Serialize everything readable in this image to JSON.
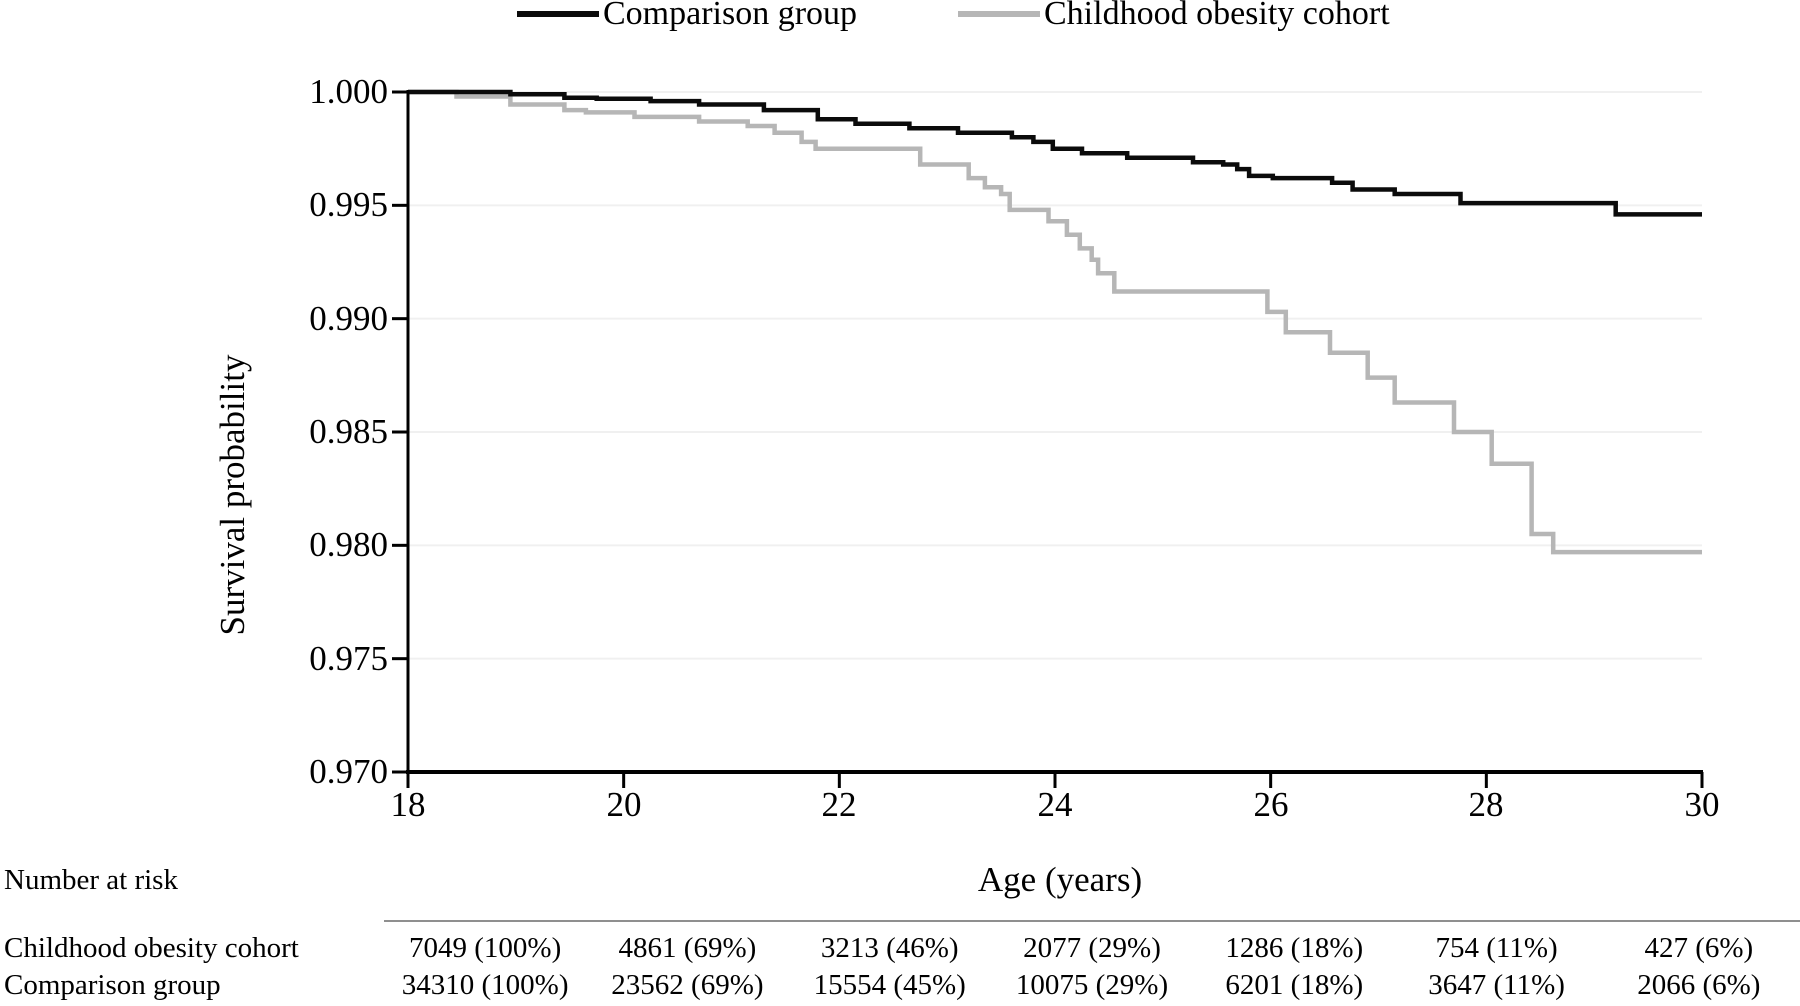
{
  "chart_data": {
    "type": "line",
    "subtype": "kaplan-meier-step",
    "title": "",
    "xlabel": "Age (years)",
    "ylabel": "Survival probability",
    "xlim": [
      18,
      30
    ],
    "ylim": [
      0.97,
      1.0
    ],
    "x_tick_labels": [
      "18",
      "20",
      "22",
      "24",
      "26",
      "28",
      "30"
    ],
    "y_tick_labels": [
      "1.000",
      "0.995",
      "0.990",
      "0.985",
      "0.980",
      "0.975",
      "0.970"
    ],
    "grid": "horizontal very light gridlines at each y tick",
    "legend_position": "top center",
    "series": [
      {
        "name": "Comparison group",
        "color": "#0b0b0b",
        "points": [
          [
            18.0,
            1.0
          ],
          [
            18.95,
            0.9999
          ],
          [
            19.45,
            0.99975
          ],
          [
            19.75,
            0.9997
          ],
          [
            20.25,
            0.9996
          ],
          [
            20.7,
            0.99945
          ],
          [
            21.3,
            0.9992
          ],
          [
            21.8,
            0.9988
          ],
          [
            22.15,
            0.9986
          ],
          [
            22.65,
            0.9984
          ],
          [
            23.1,
            0.9982
          ],
          [
            23.6,
            0.998
          ],
          [
            23.8,
            0.9978
          ],
          [
            23.98,
            0.9975
          ],
          [
            24.25,
            0.9973
          ],
          [
            24.67,
            0.9971
          ],
          [
            25.28,
            0.9969
          ],
          [
            25.56,
            0.9968
          ],
          [
            25.69,
            0.9966
          ],
          [
            25.8,
            0.9963
          ],
          [
            26.02,
            0.9962
          ],
          [
            26.57,
            0.996
          ],
          [
            26.76,
            0.9957
          ],
          [
            27.15,
            0.9955
          ],
          [
            27.76,
            0.9951
          ],
          [
            29.2,
            0.9946
          ],
          [
            30.0,
            0.9946
          ]
        ]
      },
      {
        "name": "Childhood obesity cohort",
        "color": "#b6b6b6",
        "points": [
          [
            18.0,
            1.0
          ],
          [
            18.45,
            0.9998
          ],
          [
            18.95,
            0.99945
          ],
          [
            19.45,
            0.9992
          ],
          [
            19.65,
            0.9991
          ],
          [
            20.1,
            0.9989
          ],
          [
            20.7,
            0.9987
          ],
          [
            21.15,
            0.9985
          ],
          [
            21.4,
            0.9982
          ],
          [
            21.65,
            0.9978
          ],
          [
            21.78,
            0.9975
          ],
          [
            22.75,
            0.9968
          ],
          [
            23.2,
            0.9962
          ],
          [
            23.35,
            0.9958
          ],
          [
            23.5,
            0.9955
          ],
          [
            23.58,
            0.9948
          ],
          [
            23.94,
            0.9943
          ],
          [
            24.11,
            0.9937
          ],
          [
            24.23,
            0.9931
          ],
          [
            24.34,
            0.9926
          ],
          [
            24.4,
            0.992
          ],
          [
            24.55,
            0.9912
          ],
          [
            25.97,
            0.9903
          ],
          [
            26.14,
            0.9894
          ],
          [
            26.55,
            0.9885
          ],
          [
            26.9,
            0.9874
          ],
          [
            27.15,
            0.9863
          ],
          [
            27.7,
            0.985
          ],
          [
            28.05,
            0.9836
          ],
          [
            28.42,
            0.9805
          ],
          [
            28.62,
            0.9797
          ],
          [
            30.0,
            0.9797
          ]
        ]
      }
    ]
  },
  "risk_table": {
    "header": "Number at risk",
    "rows": [
      {
        "label": "Childhood obesity cohort",
        "values": [
          "7049 (100%)",
          "4861 (69%)",
          "3213 (46%)",
          "2077 (29%)",
          "1286 (18%)",
          "754 (11%)",
          "427 (6%)"
        ]
      },
      {
        "label": "Comparison group",
        "values": [
          "34310 (100%)",
          "23562 (69%)",
          "15554 (45%)",
          "10075 (29%)",
          "6201 (18%)",
          "3647 (11%)",
          "2066 (6%)"
        ]
      }
    ]
  }
}
